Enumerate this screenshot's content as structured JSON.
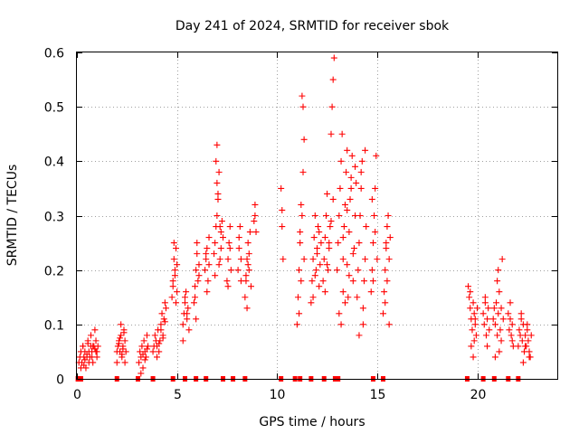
{
  "chart_data": {
    "type": "scatter",
    "title": "Day 241 of 2024, SRMTID for receiver sbok",
    "xlabel": "GPS time / hours",
    "ylabel": "SRMTID / TECUs",
    "xlim": [
      0,
      24
    ],
    "ylim": [
      0,
      0.6
    ],
    "xticks": [
      0,
      5,
      10,
      15,
      20
    ],
    "yticks": [
      0,
      0.1,
      0.2,
      0.3,
      0.4,
      0.5,
      0.6
    ],
    "xtick_labels": [
      "0",
      "5",
      "10",
      "15",
      "20"
    ],
    "ytick_labels": [
      "0",
      "0.1",
      "0.2",
      "0.3",
      "0.4",
      "0.5",
      "0.6"
    ],
    "grid": true,
    "marker": "+",
    "color": "#ff0000",
    "series": [
      {
        "name": "SRMTID",
        "x": [
          0.1,
          0.15,
          0.2,
          0.25,
          0.3,
          0.35,
          0.4,
          0.45,
          0.5,
          0.55,
          0.6,
          0.65,
          0.7,
          0.75,
          0.8,
          0.85,
          0.9,
          0.95,
          1.0,
          1.05,
          0.2,
          0.3,
          0.4,
          0.5,
          0.6,
          0.7,
          0.8,
          0.9,
          1.0,
          0.35,
          0.55,
          0.75,
          0.95,
          2.0,
          2.05,
          2.1,
          2.15,
          2.2,
          2.25,
          2.3,
          2.35,
          2.4,
          2.45,
          2.0,
          2.1,
          2.2,
          2.3,
          2.4,
          2.15,
          2.25,
          2.35,
          3.1,
          3.15,
          3.2,
          3.25,
          3.3,
          3.35,
          3.4,
          3.45,
          3.5,
          3.55,
          3.2,
          3.3,
          3.4,
          3.5,
          3.8,
          3.85,
          3.9,
          3.95,
          4.0,
          4.05,
          4.1,
          4.15,
          4.2,
          4.25,
          4.3,
          4.35,
          4.4,
          4.45,
          4.0,
          4.1,
          4.2,
          4.3,
          4.4,
          4.75,
          4.8,
          4.85,
          4.9,
          4.95,
          5.0,
          4.8,
          4.9,
          5.0,
          4.85,
          4.95,
          5.3,
          5.35,
          5.4,
          5.45,
          5.5,
          5.55,
          5.6,
          5.4,
          5.5,
          5.3,
          5.85,
          5.9,
          5.95,
          6.0,
          6.05,
          6.1,
          5.9,
          6.0,
          6.1,
          5.95,
          6.4,
          6.45,
          6.5,
          6.55,
          6.6,
          6.5,
          6.6,
          6.45,
          6.85,
          6.9,
          6.95,
          7.0,
          7.05,
          7.1,
          7.15,
          7.2,
          7.25,
          7.3,
          6.95,
          7.0,
          7.05,
          7.1,
          7.2,
          6.9,
          7.0,
          7.15,
          7.5,
          7.55,
          7.6,
          7.65,
          7.7,
          7.55,
          7.65,
          8.05,
          8.1,
          8.15,
          8.2,
          8.1,
          8.2,
          8.4,
          8.45,
          8.5,
          8.55,
          8.6,
          8.65,
          8.7,
          8.5,
          8.6,
          8.45,
          8.55,
          8.85,
          8.9,
          8.95,
          8.9,
          10.2,
          10.25,
          10.3,
          10.25,
          11.0,
          11.05,
          11.1,
          11.15,
          11.2,
          11.25,
          11.3,
          11.35,
          11.1,
          11.2,
          11.3,
          11.25,
          11.15,
          11.35,
          11.7,
          11.75,
          11.8,
          11.85,
          11.9,
          11.95,
          12.0,
          12.05,
          12.1,
          12.15,
          12.2,
          11.8,
          11.9,
          12.0,
          12.1,
          12.3,
          12.35,
          12.4,
          12.45,
          12.5,
          12.55,
          12.6,
          12.65,
          12.7,
          12.75,
          12.8,
          12.85,
          12.4,
          12.5,
          12.6,
          12.7,
          12.8,
          13.0,
          13.05,
          13.1,
          13.15,
          13.2,
          13.25,
          13.3,
          13.35,
          13.4,
          13.45,
          13.5,
          13.55,
          13.6,
          13.65,
          13.7,
          13.75,
          13.8,
          13.85,
          13.9,
          13.95,
          13.2,
          13.4,
          13.6,
          13.8,
          13.3,
          13.5,
          13.7,
          13.9,
          13.1,
          13.3,
          13.5,
          14.0,
          14.05,
          14.1,
          14.15,
          14.2,
          14.25,
          14.3,
          14.35,
          14.4,
          14.45,
          14.1,
          14.3,
          14.2,
          14.4,
          14.7,
          14.75,
          14.8,
          14.85,
          14.9,
          14.95,
          15.0,
          14.8,
          14.9,
          14.75,
          15.3,
          15.35,
          15.4,
          15.45,
          15.5,
          15.55,
          15.6,
          15.65,
          15.4,
          15.5,
          15.6,
          15.45,
          19.55,
          19.6,
          19.65,
          19.7,
          19.75,
          19.8,
          19.85,
          19.9,
          19.95,
          20.0,
          19.7,
          19.8,
          19.9,
          19.65,
          19.85,
          20.3,
          20.35,
          20.4,
          20.45,
          20.5,
          20.55,
          20.6,
          20.4,
          20.5,
          20.8,
          20.85,
          20.9,
          20.95,
          21.0,
          21.05,
          21.1,
          21.15,
          21.2,
          21.25,
          21.3,
          21.0,
          21.1,
          21.2,
          20.9,
          21.05,
          21.55,
          21.6,
          21.65,
          21.7,
          21.75,
          21.8,
          21.65,
          21.75,
          22.05,
          22.1,
          22.15,
          22.2,
          22.25,
          22.3,
          22.35,
          22.4,
          22.45,
          22.5,
          22.55,
          22.6,
          22.65,
          22.7,
          22.2,
          22.3,
          22.4,
          22.5,
          22.6
        ],
        "y": [
          0.03,
          0.04,
          0.05,
          0.03,
          0.06,
          0.04,
          0.05,
          0.02,
          0.04,
          0.07,
          0.05,
          0.04,
          0.06,
          0.05,
          0.03,
          0.06,
          0.09,
          0.05,
          0.04,
          0.06,
          0.02,
          0.06,
          0.035,
          0.045,
          0.03,
          0.08,
          0.06,
          0.055,
          0.05,
          0.025,
          0.065,
          0.04,
          0.07,
          0.05,
          0.06,
          0.07,
          0.05,
          0.08,
          0.04,
          0.06,
          0.09,
          0.07,
          0.05,
          0.03,
          0.065,
          0.1,
          0.055,
          0.03,
          0.075,
          0.045,
          0.085,
          0.03,
          0.05,
          0.04,
          0.06,
          0.02,
          0.07,
          0.05,
          0.04,
          0.08,
          0.06,
          0.01,
          0.045,
          0.035,
          0.055,
          0.05,
          0.06,
          0.08,
          0.07,
          0.06,
          0.09,
          0.05,
          0.07,
          0.1,
          0.12,
          0.08,
          0.11,
          0.14,
          0.13,
          0.04,
          0.065,
          0.09,
          0.075,
          0.105,
          0.15,
          0.18,
          0.22,
          0.2,
          0.24,
          0.16,
          0.17,
          0.19,
          0.21,
          0.25,
          0.14,
          0.1,
          0.12,
          0.14,
          0.16,
          0.11,
          0.13,
          0.09,
          0.15,
          0.12,
          0.07,
          0.14,
          0.17,
          0.2,
          0.23,
          0.18,
          0.21,
          0.15,
          0.25,
          0.19,
          0.11,
          0.2,
          0.22,
          0.24,
          0.18,
          0.26,
          0.16,
          0.21,
          0.23,
          0.23,
          0.25,
          0.28,
          0.3,
          0.34,
          0.38,
          0.22,
          0.27,
          0.29,
          0.26,
          0.4,
          0.43,
          0.33,
          0.21,
          0.24,
          0.19,
          0.36,
          0.28,
          0.18,
          0.22,
          0.25,
          0.28,
          0.2,
          0.17,
          0.24,
          0.2,
          0.24,
          0.28,
          0.22,
          0.26,
          0.18,
          0.15,
          0.18,
          0.22,
          0.25,
          0.2,
          0.27,
          0.17,
          0.13,
          0.23,
          0.19,
          0.21,
          0.29,
          0.32,
          0.27,
          0.3,
          0.35,
          0.28,
          0.22,
          0.31,
          0.1,
          0.15,
          0.2,
          0.25,
          0.32,
          0.3,
          0.38,
          0.44,
          0.12,
          0.18,
          0.5,
          0.52,
          0.27,
          0.22,
          0.14,
          0.18,
          0.22,
          0.26,
          0.3,
          0.2,
          0.24,
          0.28,
          0.17,
          0.21,
          0.25,
          0.15,
          0.19,
          0.23,
          0.27,
          0.18,
          0.22,
          0.26,
          0.3,
          0.34,
          0.2,
          0.24,
          0.28,
          0.45,
          0.5,
          0.55,
          0.59,
          0.16,
          0.21,
          0.25,
          0.29,
          0.33,
          0.2,
          0.25,
          0.3,
          0.35,
          0.4,
          0.45,
          0.22,
          0.28,
          0.32,
          0.38,
          0.42,
          0.15,
          0.27,
          0.33,
          0.37,
          0.41,
          0.18,
          0.24,
          0.3,
          0.36,
          0.1,
          0.14,
          0.19,
          0.23,
          0.26,
          0.31,
          0.35,
          0.39,
          0.12,
          0.16,
          0.21,
          0.15,
          0.2,
          0.25,
          0.3,
          0.35,
          0.4,
          0.1,
          0.18,
          0.22,
          0.28,
          0.08,
          0.13,
          0.38,
          0.42,
          0.16,
          0.2,
          0.25,
          0.3,
          0.35,
          0.41,
          0.22,
          0.18,
          0.27,
          0.33,
          0.12,
          0.16,
          0.2,
          0.24,
          0.28,
          0.3,
          0.22,
          0.26,
          0.14,
          0.18,
          0.1,
          0.25,
          0.17,
          0.15,
          0.13,
          0.11,
          0.09,
          0.14,
          0.12,
          0.1,
          0.08,
          0.13,
          0.06,
          0.04,
          0.11,
          0.16,
          0.07,
          0.12,
          0.1,
          0.14,
          0.08,
          0.11,
          0.13,
          0.09,
          0.15,
          0.06,
          0.11,
          0.13,
          0.1,
          0.14,
          0.08,
          0.12,
          0.16,
          0.09,
          0.07,
          0.22,
          0.11,
          0.18,
          0.05,
          0.13,
          0.04,
          0.2,
          0.12,
          0.09,
          0.11,
          0.08,
          0.1,
          0.06,
          0.14,
          0.07,
          0.06,
          0.09,
          0.08,
          0.11,
          0.07,
          0.1,
          0.05,
          0.08,
          0.06,
          0.09,
          0.07,
          0.05,
          0.04,
          0.08,
          0.12,
          0.03,
          0.06,
          0.1,
          0.04
        ]
      }
    ],
    "gap_markers_x": [
      0.05,
      0.2,
      2.0,
      3.05,
      3.8,
      4.8,
      5.4,
      5.95,
      6.45,
      7.3,
      7.8,
      8.4,
      10.2,
      10.9,
      11.15,
      11.7,
      12.35,
      12.9,
      13.05,
      14.8,
      15.3,
      19.5,
      20.3,
      20.85,
      21.55,
      22.05
    ]
  }
}
